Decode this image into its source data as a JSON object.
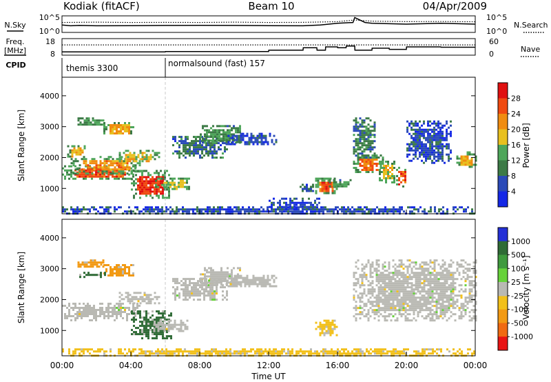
{
  "header": {
    "station": "Kodiak (fitACF)",
    "beam": "Beam 10",
    "date": "04/Apr/2009"
  },
  "colors": {
    "power_scale": [
      "#1428e6",
      "#2a4ab8",
      "#3c7a46",
      "#4ea65a",
      "#e8c020",
      "#f08c10",
      "#f04a10",
      "#e01010"
    ],
    "velocity_scale": [
      "#2430d6",
      "#2f6b36",
      "#3f9a3e",
      "#66d23a",
      "#c8c8c0",
      "#f2c01a",
      "#f29a14",
      "#f06a12",
      "#e81414"
    ],
    "ground_scatter": "#b9b9b3"
  },
  "chart_data": [
    {
      "type": "line",
      "panel": "noise",
      "left_label": "N.Sky",
      "right_label": "N.Search",
      "y_ticks_left": [
        "10^5",
        "10^0"
      ],
      "y_ticks_right": [
        "10^5",
        "10^0"
      ],
      "series": [
        {
          "style": "solid",
          "x": [
            0,
            0.5,
            1,
            2,
            4,
            6,
            8,
            10,
            12,
            14,
            15,
            16,
            16.9,
            17,
            17.6,
            18,
            20,
            22,
            24
          ],
          "y": [
            0.45,
            0.4,
            0.42,
            0.4,
            0.41,
            0.42,
            0.43,
            0.42,
            0.41,
            0.4,
            0.45,
            0.55,
            0.6,
            0.9,
            0.6,
            0.55,
            0.5,
            0.55,
            0.5
          ]
        },
        {
          "style": "dotted",
          "x": [
            0,
            2,
            4,
            6,
            8,
            10,
            12,
            14,
            16,
            17,
            18,
            20,
            22,
            24
          ],
          "y": [
            0.6,
            0.62,
            0.6,
            0.61,
            0.6,
            0.62,
            0.6,
            0.61,
            0.65,
            0.75,
            0.68,
            0.65,
            0.66,
            0.64
          ]
        }
      ]
    },
    {
      "type": "line",
      "panel": "frequency",
      "left_label": "Freq.",
      "left_unit": "[MHz]",
      "right_label": "Nave",
      "y_ticks_left": [
        "18",
        "8"
      ],
      "y_ticks_right": [
        "60",
        "0"
      ],
      "series": [
        {
          "style": "solid",
          "x": [
            0,
            6,
            6.01,
            12,
            12.01,
            14,
            14.01,
            14.8,
            14.81,
            15.3,
            15.31,
            16,
            16.01,
            16.5,
            16.51,
            17,
            17.01,
            18,
            18.01,
            19,
            19.01,
            20,
            20.01,
            22,
            22.01,
            24
          ],
          "y": [
            0.2,
            0.2,
            0.22,
            0.22,
            0.3,
            0.3,
            0.45,
            0.45,
            0.3,
            0.3,
            0.5,
            0.5,
            0.45,
            0.45,
            0.55,
            0.55,
            0.3,
            0.3,
            0.42,
            0.42,
            0.35,
            0.35,
            0.5,
            0.5,
            0.48,
            0.48
          ]
        },
        {
          "style": "dotted",
          "x": [
            0,
            24
          ],
          "y": [
            0.62,
            0.62
          ]
        }
      ]
    },
    {
      "type": "table",
      "panel": "cpid",
      "label": "CPID",
      "segments": [
        {
          "start": 0,
          "end": 6,
          "name": "themis 3300"
        },
        {
          "start": 6,
          "end": 24,
          "name": "normalsound (fast) 157"
        }
      ]
    },
    {
      "type": "heatmap",
      "panel": "power",
      "ylabel": "Slant Range [km]",
      "ylim": [
        180,
        4600
      ],
      "yticks": [
        1000,
        2000,
        3000,
        4000
      ],
      "xlim": [
        0,
        24
      ],
      "colorbar": {
        "label": "Power [dB]",
        "ticks": [
          4,
          8,
          12,
          16,
          20,
          24,
          28
        ],
        "range": [
          0,
          32
        ]
      },
      "regions": [
        {
          "t0": 0.0,
          "t1": 4.3,
          "r0": 1300,
          "r1": 1750,
          "value": 26
        },
        {
          "t0": 0.5,
          "t1": 4.5,
          "r0": 1500,
          "r1": 2050,
          "value": 22
        },
        {
          "t0": 3.3,
          "t1": 5.6,
          "r0": 1850,
          "r1": 2250,
          "value": 18
        },
        {
          "t0": 0.3,
          "t1": 1.3,
          "r0": 2000,
          "r1": 2400,
          "value": 20
        },
        {
          "t0": 0.9,
          "t1": 2.4,
          "r0": 3050,
          "r1": 3300,
          "value": 12
        },
        {
          "t0": 2.4,
          "t1": 4.2,
          "r0": 2750,
          "r1": 3150,
          "value": 20
        },
        {
          "t0": 4.0,
          "t1": 6.2,
          "r0": 700,
          "r1": 1600,
          "value": 28
        },
        {
          "t0": 5.4,
          "t1": 7.4,
          "r0": 950,
          "r1": 1350,
          "value": 16
        },
        {
          "t0": 6.4,
          "t1": 9.6,
          "r0": 2000,
          "r1": 2700,
          "value": 8
        },
        {
          "t0": 8.0,
          "t1": 10.3,
          "r0": 2450,
          "r1": 3050,
          "value": 12
        },
        {
          "t0": 9.5,
          "t1": 12.4,
          "r0": 2450,
          "r1": 2800,
          "value": 6
        },
        {
          "t0": 12.0,
          "t1": 15.0,
          "r0": 300,
          "r1": 700,
          "value": 5
        },
        {
          "t0": 13.8,
          "t1": 14.6,
          "r0": 900,
          "r1": 1150,
          "value": 8
        },
        {
          "t0": 14.7,
          "t1": 15.9,
          "r0": 850,
          "r1": 1350,
          "value": 26
        },
        {
          "t0": 15.5,
          "t1": 16.8,
          "r0": 1050,
          "r1": 1300,
          "value": 12
        },
        {
          "t0": 16.9,
          "t1": 18.6,
          "r0": 1500,
          "r1": 2100,
          "value": 24
        },
        {
          "t0": 16.9,
          "t1": 18.2,
          "r0": 2000,
          "r1": 3300,
          "value": 10
        },
        {
          "t0": 18.4,
          "t1": 19.3,
          "r0": 1200,
          "r1": 1900,
          "value": 18
        },
        {
          "t0": 19.4,
          "t1": 20.0,
          "r0": 1050,
          "r1": 1700,
          "value": 26
        },
        {
          "t0": 20.0,
          "t1": 22.6,
          "r0": 1800,
          "r1": 3200,
          "value": 6
        },
        {
          "t0": 22.9,
          "t1": 24.0,
          "r0": 1700,
          "r1": 2200,
          "value": 20
        },
        {
          "t0": 0.0,
          "t1": 24.0,
          "r0": 200,
          "r1": 420,
          "value": 6
        }
      ]
    },
    {
      "type": "heatmap",
      "panel": "velocity",
      "ylabel": "Slant Range [km]",
      "ylim": [
        180,
        4600
      ],
      "yticks": [
        1000,
        2000,
        3000,
        4000
      ],
      "xlim": [
        0,
        24
      ],
      "xlabel": "Time UT",
      "xticks": [
        "00:00",
        "04:00",
        "08:00",
        "12:00",
        "16:00",
        "20:00",
        "00:00"
      ],
      "colorbar": {
        "label": "Velocity [m s⁻¹]",
        "ticks": [
          "1000",
          "500",
          "100",
          "25",
          "-25",
          "-100",
          "-500",
          "-1000"
        ]
      },
      "regions": [
        {
          "t0": 0.0,
          "t1": 4.5,
          "r0": 1350,
          "r1": 1900,
          "value": 0
        },
        {
          "t0": 3.3,
          "t1": 5.6,
          "r0": 1850,
          "r1": 2250,
          "value": 0
        },
        {
          "t0": 4.0,
          "t1": 6.3,
          "r0": 750,
          "r1": 1650,
          "value": 200
        },
        {
          "t0": 5.3,
          "t1": 7.3,
          "r0": 950,
          "r1": 1350,
          "value": 0
        },
        {
          "t0": 0.9,
          "t1": 2.4,
          "r0": 3050,
          "r1": 3300,
          "value": -300
        },
        {
          "t0": 2.4,
          "t1": 4.2,
          "r0": 2800,
          "r1": 3150,
          "value": -300
        },
        {
          "t0": 1.0,
          "t1": 2.5,
          "r0": 2750,
          "r1": 2900,
          "value": 200
        },
        {
          "t0": 6.4,
          "t1": 9.6,
          "r0": 2000,
          "r1": 2700,
          "value": 0
        },
        {
          "t0": 8.0,
          "t1": 10.3,
          "r0": 2450,
          "r1": 3050,
          "value": 0
        },
        {
          "t0": 9.5,
          "t1": 12.4,
          "r0": 2450,
          "r1": 2800,
          "value": 0
        },
        {
          "t0": 14.7,
          "t1": 15.9,
          "r0": 850,
          "r1": 1350,
          "value": -60
        },
        {
          "t0": 16.9,
          "t1": 24.0,
          "r0": 1300,
          "r1": 3300,
          "value": 0
        },
        {
          "t0": 0.0,
          "t1": 24.0,
          "r0": 200,
          "r1": 420,
          "value": -60
        }
      ]
    }
  ]
}
